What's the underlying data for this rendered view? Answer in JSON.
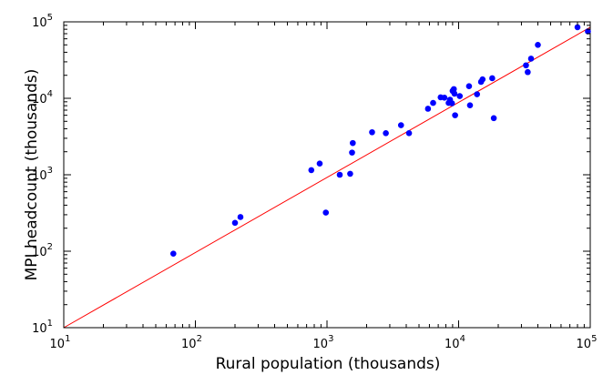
{
  "chart_data": {
    "type": "scatter",
    "title": "",
    "xlabel": "Rural population (thousands)",
    "ylabel": "MPI headcount (thousands)",
    "xscale": "log",
    "yscale": "log",
    "xlim": [
      10,
      100000
    ],
    "ylim": [
      10,
      100000
    ],
    "grid": false,
    "ticks": [
      {
        "value": 10,
        "base": "10",
        "exp": "1"
      },
      {
        "value": 100,
        "base": "10",
        "exp": "2"
      },
      {
        "value": 1000,
        "base": "10",
        "exp": "3"
      },
      {
        "value": 10000,
        "base": "10",
        "exp": "4"
      },
      {
        "value": 100000,
        "base": "10",
        "exp": "5"
      }
    ],
    "points": [
      [
        68,
        93
      ],
      [
        200,
        235
      ],
      [
        220,
        280
      ],
      [
        760,
        1150
      ],
      [
        880,
        1400
      ],
      [
        980,
        320
      ],
      [
        1250,
        1000
      ],
      [
        1500,
        1030
      ],
      [
        1550,
        1950
      ],
      [
        1570,
        2600
      ],
      [
        2200,
        3600
      ],
      [
        2800,
        3500
      ],
      [
        3650,
        4450
      ],
      [
        4200,
        3500
      ],
      [
        5850,
        7300
      ],
      [
        6400,
        8700
      ],
      [
        7300,
        10300
      ],
      [
        7800,
        10200
      ],
      [
        8400,
        8700
      ],
      [
        8600,
        9600
      ],
      [
        8900,
        8600
      ],
      [
        9000,
        12500
      ],
      [
        9200,
        13200
      ],
      [
        9300,
        11500
      ],
      [
        9400,
        6000
      ],
      [
        10200,
        10700
      ],
      [
        12000,
        14400
      ],
      [
        12200,
        8100
      ],
      [
        13800,
        11300
      ],
      [
        14800,
        16400
      ],
      [
        15200,
        17700
      ],
      [
        18000,
        18300
      ],
      [
        18500,
        5500
      ],
      [
        32500,
        27000
      ],
      [
        33500,
        22000
      ],
      [
        35500,
        33000
      ],
      [
        40000,
        50000
      ],
      [
        80000,
        85000
      ],
      [
        96000,
        75000
      ]
    ],
    "fit_line": [
      [
        10,
        10
      ],
      [
        100000,
        85000
      ]
    ],
    "colors": {
      "points": "#0000ff",
      "line": "#ff0000"
    }
  }
}
